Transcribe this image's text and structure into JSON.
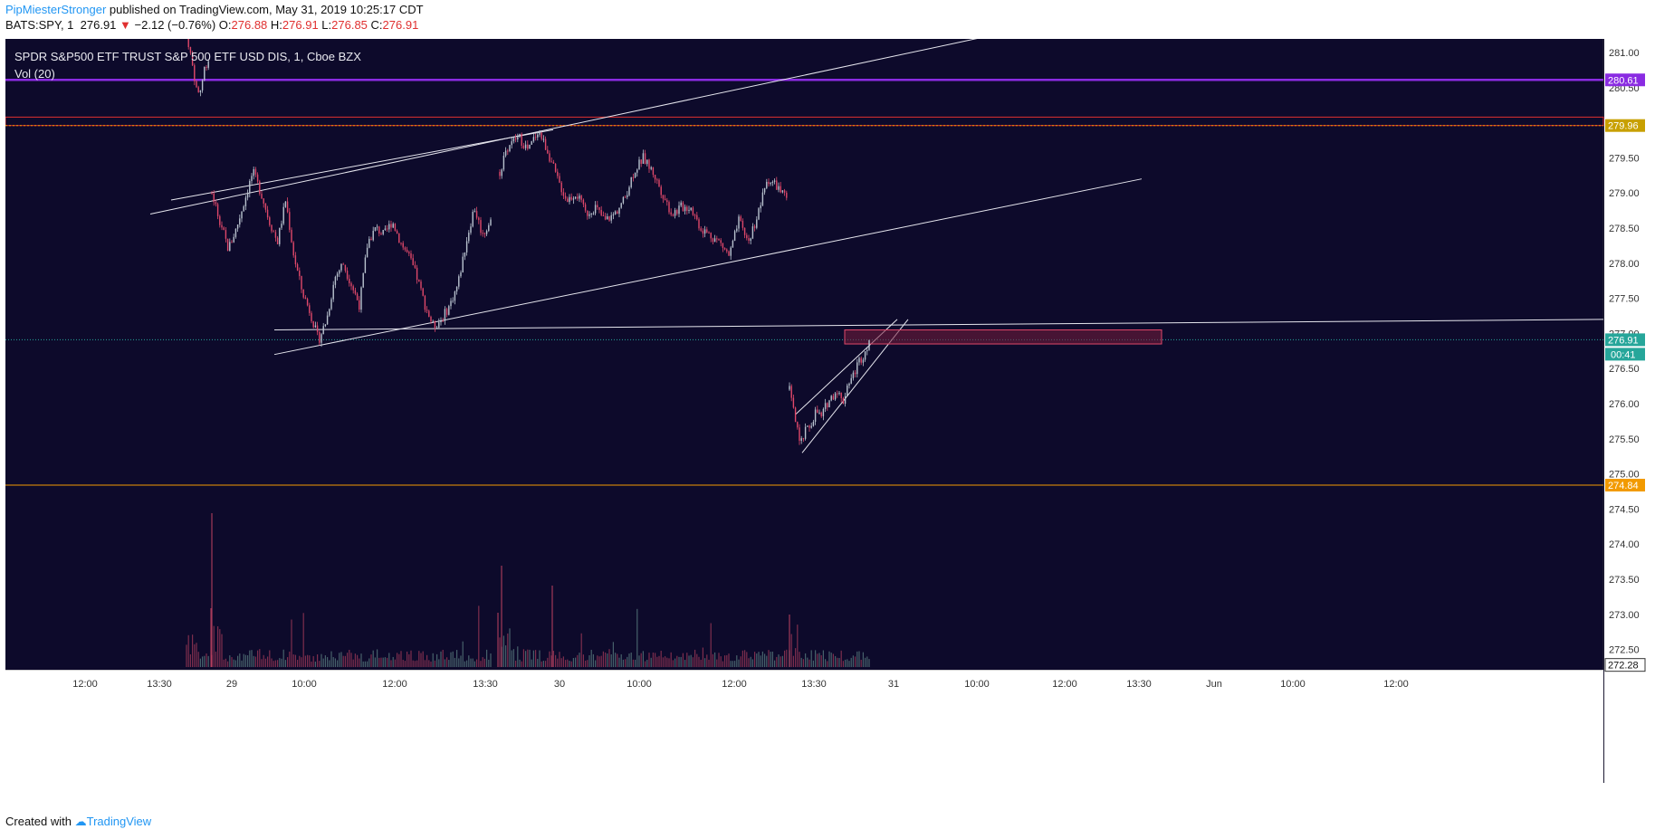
{
  "header": {
    "author": "PipMiesterStronger",
    "published": "published on TradingView.com, May 31, 2019 10:25:17 CDT",
    "symbol": "BATS:SPY, 1",
    "last": "276.91",
    "change": "−2.12 (−0.76%)",
    "o_label": "O:",
    "o_val": "276.88",
    "h_label": "H:",
    "h_val": "276.91",
    "l_label": "L:",
    "l_val": "276.85",
    "c_label": "C:",
    "c_val": "276.91"
  },
  "legend": {
    "instrument": "SPDR S&P500 ETF TRUST S&P 500 ETF USD DIS, 1, Cboe BZX",
    "indicator": "Vol (20)"
  },
  "footer": {
    "created": "Created with",
    "brand": "TradingView"
  },
  "colors": {
    "background": "#0d0a2b",
    "up": "#b9c3cf",
    "down": "#e0486a",
    "purple_level": "#8a2be2",
    "red_level": "#e03030",
    "orange_level": "#f29a00",
    "last_price": "#26a69a"
  },
  "chart_data": {
    "type": "candlestick",
    "ylim": [
      272.28,
      281.3
    ],
    "y_ticks": [
      "281.00",
      "280.50",
      "280.00",
      "279.50",
      "279.00",
      "278.50",
      "278.00",
      "277.50",
      "277.00",
      "276.50",
      "276.00",
      "275.50",
      "275.00",
      "274.50",
      "274.00",
      "273.50",
      "273.00",
      "272.50"
    ],
    "x_ticks": [
      "12:00",
      "13:30",
      "29",
      "10:00",
      "12:00",
      "13:30",
      "30",
      "10:00",
      "12:00",
      "13:30",
      "31",
      "10:00",
      "12:00",
      "13:30",
      "Jun",
      "10:00",
      "12:00"
    ],
    "price_labels": [
      {
        "value": 280.61,
        "text": "280.61",
        "color": "#8a2be2"
      },
      {
        "value": 279.96,
        "text": "279.96",
        "color": "#c8a000"
      },
      {
        "value": 276.91,
        "text": "276.91",
        "color": "#26a69a"
      },
      {
        "value": 274.84,
        "text": "274.84",
        "color": "#f29a00"
      },
      {
        "value": 272.28,
        "text": "272.28",
        "color": "#ffffff"
      }
    ],
    "countdown": "00:41",
    "levels": [
      {
        "value": 280.61,
        "color": "#8a2be2"
      },
      {
        "value": 280.08,
        "color": "#e03030"
      },
      {
        "value": 279.96,
        "color": "#e03030"
      },
      {
        "value": 274.84,
        "color": "#f29a00"
      }
    ],
    "series": [
      {
        "segment": "May 28 (end)",
        "close": [
          281.3,
          281.0,
          280.7,
          280.4,
          280.5,
          280.8,
          280.9
        ]
      },
      {
        "segment": "May 29",
        "close": [
          279.0,
          278.6,
          278.2,
          278.5,
          278.9,
          279.3,
          279.0,
          278.6,
          278.3,
          278.9,
          278.1,
          277.6,
          277.3,
          276.9,
          277.2,
          277.8,
          278.0,
          277.7,
          277.4,
          278.3,
          278.5,
          278.4,
          278.6,
          278.3,
          278.1,
          277.8,
          277.4,
          277.1,
          277.2,
          277.4,
          277.7,
          278.3,
          278.8,
          278.4,
          278.6
        ]
      },
      {
        "segment": "May 30",
        "close": [
          279.3,
          279.7,
          279.8,
          279.6,
          279.9,
          279.6,
          279.2,
          278.9,
          279.0,
          278.7,
          278.8,
          278.6,
          278.7,
          278.9,
          279.3,
          279.5,
          279.3,
          279.0,
          278.7,
          278.8,
          278.8,
          278.5,
          278.4,
          278.3,
          278.1,
          278.6,
          278.3,
          278.7,
          279.2,
          279.1,
          278.9
        ]
      },
      {
        "segment": "May 31",
        "close": [
          276.2,
          275.8,
          275.4,
          275.6,
          275.7,
          275.9,
          275.8,
          276.0,
          276.1,
          276.2,
          276.0,
          276.3,
          276.4,
          276.6,
          276.7,
          276.91
        ]
      }
    ],
    "volume_peaks_pct": [
      0.42,
      0.75,
      0.3,
      0.2,
      0.44,
      0.5,
      0.42,
      0.2,
      0.25
    ]
  }
}
